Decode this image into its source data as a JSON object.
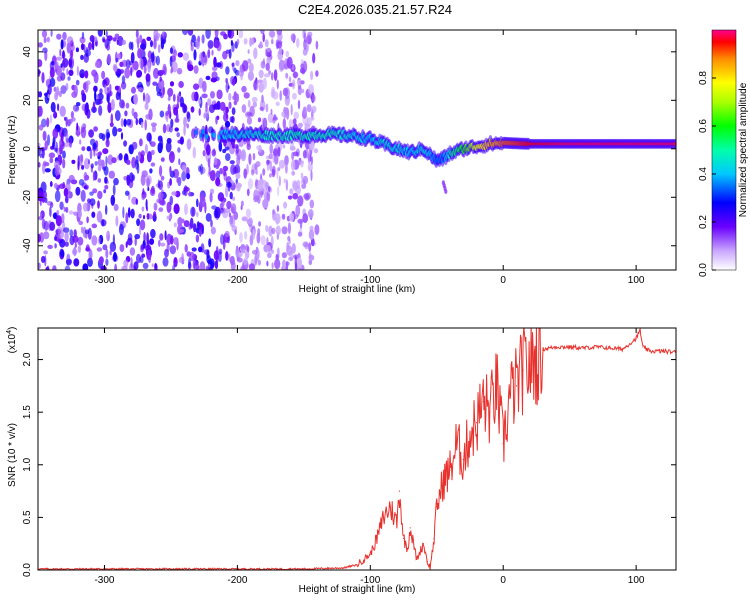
{
  "title": "C2E4.2026.035.21.57.R24",
  "colors": {
    "background": "#ffffff",
    "axis": "#000000",
    "snr_line": "#e8312c"
  },
  "chart_data": [
    {
      "type": "heatmap",
      "name": "spectrogram",
      "xlabel": "Height of straight line (km)",
      "ylabel": "Frequency (Hz)",
      "xlim": [
        -350,
        130
      ],
      "ylim": [
        -50,
        49
      ],
      "xticks": [
        -300,
        -200,
        -100,
        0,
        100
      ],
      "xtick_labels": [
        "-300",
        "-200",
        "-100",
        "0",
        "100"
      ],
      "yticks": [
        -40,
        -20,
        0,
        20,
        40
      ],
      "ytick_labels": [
        "-40",
        "-20",
        "0",
        "20",
        "40"
      ],
      "noise_region_x": [
        -350,
        -140
      ],
      "signal_trace": {
        "x": [
          -230,
          -190,
          -170,
          -150,
          -130,
          -115,
          -100,
          -90,
          -80,
          -70,
          -60,
          -50,
          -45,
          -40,
          -30,
          -20,
          -10,
          0,
          20,
          50,
          80,
          110,
          130
        ],
        "freq": [
          6,
          6,
          5.5,
          5.5,
          6,
          5.5,
          4,
          2,
          0,
          -1.5,
          0,
          -5,
          -4,
          -2,
          0,
          1,
          2,
          2.5,
          2,
          2,
          2,
          2,
          2
        ],
        "amplitude": [
          0.35,
          0.45,
          0.5,
          0.5,
          0.5,
          0.45,
          0.4,
          0.45,
          0.45,
          0.4,
          0.45,
          0.35,
          0.35,
          0.5,
          0.6,
          0.75,
          0.85,
          0.9,
          0.95,
          0.98,
          0.98,
          0.98,
          0.98
        ]
      },
      "colorbar": {
        "label": "Normalized spectral amplitude",
        "range": [
          0.0,
          1.0
        ],
        "ticks": [
          0.0,
          0.2,
          0.4,
          0.6,
          0.8
        ],
        "tick_labels": [
          "0.0",
          "0.2",
          "0.4",
          "0.6",
          "0.8"
        ]
      }
    },
    {
      "type": "line",
      "name": "snr",
      "xlabel": "Height of straight line (km)",
      "ylabel": "SNR (10 * v/v)",
      "y_multiplier": "(x10",
      "y_multiplier_exp": "4",
      "y_multiplier_close": ")",
      "xlim": [
        -350,
        130
      ],
      "ylim": [
        0.0,
        2.3
      ],
      "xticks": [
        -300,
        -200,
        -100,
        0,
        100
      ],
      "xtick_labels": [
        "-300",
        "-200",
        "-100",
        "0",
        "100"
      ],
      "yticks": [
        0.0,
        0.5,
        1.0,
        1.5,
        2.0
      ],
      "ytick_labels": [
        "0.0",
        "0.5",
        "1.0",
        "1.5",
        "2.0"
      ],
      "series": {
        "name": "SNR",
        "x": [
          -350,
          -300,
          -250,
          -200,
          -150,
          -120,
          -110,
          -100,
          -95,
          -90,
          -85,
          -80,
          -78,
          -75,
          -72,
          -70,
          -65,
          -60,
          -57,
          -55,
          -52,
          -50,
          -45,
          -40,
          -35,
          -30,
          -25,
          -20,
          -15,
          -10,
          -5,
          0,
          5,
          10,
          15,
          20,
          25,
          30,
          40,
          50,
          60,
          70,
          80,
          90,
          95,
          100,
          103,
          105,
          110,
          120,
          130
        ],
        "y": [
          0.01,
          0.01,
          0.01,
          0.01,
          0.01,
          0.02,
          0.05,
          0.15,
          0.3,
          0.5,
          0.6,
          0.45,
          0.75,
          0.3,
          0.2,
          0.4,
          0.1,
          0.25,
          0.08,
          0.02,
          0.3,
          0.6,
          0.85,
          0.95,
          1.2,
          1.05,
          1.3,
          1.4,
          1.6,
          1.5,
          1.75,
          1.2,
          1.65,
          1.75,
          1.9,
          1.95,
          2.0,
          2.1,
          2.12,
          2.12,
          2.11,
          2.12,
          2.11,
          2.1,
          2.15,
          2.2,
          2.28,
          2.12,
          2.08,
          2.08,
          2.07
        ]
      }
    }
  ]
}
